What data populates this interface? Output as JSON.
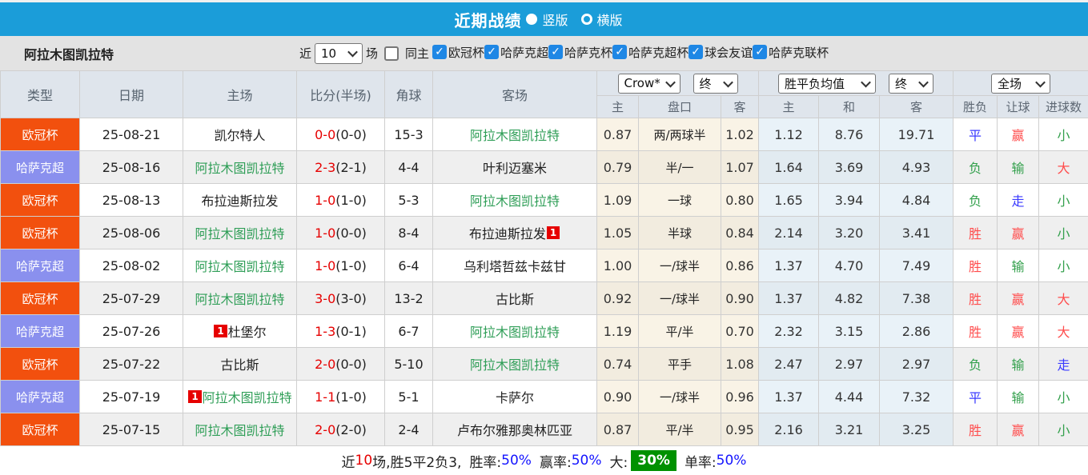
{
  "topbar": {
    "title": "近期战绩",
    "radio_vertical": "竖版",
    "radio_horizontal": "横版"
  },
  "filter": {
    "team_name": "阿拉木图凯拉特",
    "recent_label": "近",
    "recent_value": "10",
    "games_label": "场",
    "same_home_label": "同主",
    "leagues": [
      "欧冠杯",
      "哈萨克超",
      "哈萨克杯",
      "哈萨克超杯",
      "球会友谊",
      "哈萨克联杯"
    ]
  },
  "table": {
    "headers": [
      "类型",
      "日期",
      "主场",
      "比分(半场)",
      "角球",
      "客场"
    ],
    "sub_headers": [
      "主",
      "盘口",
      "客",
      "主",
      "和",
      "客",
      "胜负",
      "让球",
      "进球数"
    ],
    "selects": {
      "company": "Crow*",
      "company_state": "终",
      "mean": "胜平负均值",
      "mean_state": "终",
      "scope": "全场"
    },
    "rows": [
      {
        "type": "欧冠杯",
        "type_key": "ucl",
        "date": "25-08-21",
        "home": {
          "n": "凯尔特人",
          "green": false,
          "badge": null,
          "badge_pos": "before"
        },
        "score_ft": "0-0",
        "score_half": "(0-0)",
        "corners": "15-3",
        "away": {
          "n": "阿拉木图凯拉特",
          "green": true,
          "badge": null,
          "badge_pos": "before"
        },
        "odds": {
          "h": "0.87",
          "line": "两/两球半",
          "a": "1.02"
        },
        "mean": {
          "h": "1.12",
          "d": "8.76",
          "a": "19.71"
        },
        "results": {
          "wdl": {
            "t": "平",
            "c": "blue"
          },
          "handicap": {
            "t": "赢",
            "c": "red"
          },
          "goals": {
            "t": "小",
            "c": "green"
          }
        }
      },
      {
        "type": "哈萨克超",
        "type_key": "ksl",
        "date": "25-08-16",
        "home": {
          "n": "阿拉木图凯拉特",
          "green": true,
          "badge": null,
          "badge_pos": "before"
        },
        "score_ft": "2-3",
        "score_half": "(2-1)",
        "corners": "4-4",
        "away": {
          "n": "叶利迈塞米",
          "green": false,
          "badge": null,
          "badge_pos": "before"
        },
        "odds": {
          "h": "0.79",
          "line": "半/一",
          "a": "1.07"
        },
        "mean": {
          "h": "1.64",
          "d": "3.69",
          "a": "4.93"
        },
        "results": {
          "wdl": {
            "t": "负",
            "c": "green"
          },
          "handicap": {
            "t": "输",
            "c": "green"
          },
          "goals": {
            "t": "大",
            "c": "red"
          }
        }
      },
      {
        "type": "欧冠杯",
        "type_key": "ucl",
        "date": "25-08-13",
        "home": {
          "n": "布拉迪斯拉发",
          "green": false,
          "badge": null,
          "badge_pos": "before"
        },
        "score_ft": "1-0",
        "score_half": "(1-0)",
        "corners": "5-3",
        "away": {
          "n": "阿拉木图凯拉特",
          "green": true,
          "badge": null,
          "badge_pos": "before"
        },
        "odds": {
          "h": "1.09",
          "line": "一球",
          "a": "0.80"
        },
        "mean": {
          "h": "1.65",
          "d": "3.94",
          "a": "4.84"
        },
        "results": {
          "wdl": {
            "t": "负",
            "c": "green"
          },
          "handicap": {
            "t": "走",
            "c": "blue"
          },
          "goals": {
            "t": "小",
            "c": "green"
          }
        }
      },
      {
        "type": "欧冠杯",
        "type_key": "ucl",
        "date": "25-08-06",
        "home": {
          "n": "阿拉木图凯拉特",
          "green": true,
          "badge": null,
          "badge_pos": "before"
        },
        "score_ft": "1-0",
        "score_half": "(0-0)",
        "corners": "8-4",
        "away": {
          "n": "布拉迪斯拉发",
          "green": false,
          "badge": "1",
          "badge_pos": "after"
        },
        "odds": {
          "h": "1.05",
          "line": "半球",
          "a": "0.84"
        },
        "mean": {
          "h": "2.14",
          "d": "3.20",
          "a": "3.41"
        },
        "results": {
          "wdl": {
            "t": "胜",
            "c": "red"
          },
          "handicap": {
            "t": "赢",
            "c": "red"
          },
          "goals": {
            "t": "小",
            "c": "green"
          }
        }
      },
      {
        "type": "哈萨克超",
        "type_key": "ksl",
        "date": "25-08-02",
        "home": {
          "n": "阿拉木图凯拉特",
          "green": true,
          "badge": null,
          "badge_pos": "before"
        },
        "score_ft": "1-0",
        "score_half": "(1-0)",
        "corners": "6-4",
        "away": {
          "n": "乌利塔哲兹卡兹甘",
          "green": false,
          "badge": null,
          "badge_pos": "before"
        },
        "odds": {
          "h": "1.00",
          "line": "一/球半",
          "a": "0.86"
        },
        "mean": {
          "h": "1.37",
          "d": "4.70",
          "a": "7.49"
        },
        "results": {
          "wdl": {
            "t": "胜",
            "c": "red"
          },
          "handicap": {
            "t": "输",
            "c": "green"
          },
          "goals": {
            "t": "小",
            "c": "green"
          }
        }
      },
      {
        "type": "欧冠杯",
        "type_key": "ucl",
        "date": "25-07-29",
        "home": {
          "n": "阿拉木图凯拉特",
          "green": true,
          "badge": null,
          "badge_pos": "before"
        },
        "score_ft": "3-0",
        "score_half": "(3-0)",
        "corners": "13-2",
        "away": {
          "n": "古比斯",
          "green": false,
          "badge": null,
          "badge_pos": "before"
        },
        "odds": {
          "h": "0.92",
          "line": "一/球半",
          "a": "0.90"
        },
        "mean": {
          "h": "1.37",
          "d": "4.82",
          "a": "7.38"
        },
        "results": {
          "wdl": {
            "t": "胜",
            "c": "red"
          },
          "handicap": {
            "t": "赢",
            "c": "red"
          },
          "goals": {
            "t": "大",
            "c": "red"
          }
        }
      },
      {
        "type": "哈萨克超",
        "type_key": "ksl",
        "date": "25-07-26",
        "home": {
          "n": "杜堡尔",
          "green": false,
          "badge": "1",
          "badge_pos": "before"
        },
        "score_ft": "1-3",
        "score_half": "(0-1)",
        "corners": "6-7",
        "away": {
          "n": "阿拉木图凯拉特",
          "green": true,
          "badge": null,
          "badge_pos": "before"
        },
        "odds": {
          "h": "1.19",
          "line": "平/半",
          "a": "0.70"
        },
        "mean": {
          "h": "2.32",
          "d": "3.15",
          "a": "2.86"
        },
        "results": {
          "wdl": {
            "t": "胜",
            "c": "red"
          },
          "handicap": {
            "t": "赢",
            "c": "red"
          },
          "goals": {
            "t": "大",
            "c": "red"
          }
        }
      },
      {
        "type": "欧冠杯",
        "type_key": "ucl",
        "date": "25-07-22",
        "home": {
          "n": "古比斯",
          "green": false,
          "badge": null,
          "badge_pos": "before"
        },
        "score_ft": "2-0",
        "score_half": "(0-0)",
        "corners": "5-10",
        "away": {
          "n": "阿拉木图凯拉特",
          "green": true,
          "badge": null,
          "badge_pos": "before"
        },
        "odds": {
          "h": "0.74",
          "line": "平手",
          "a": "1.08"
        },
        "mean": {
          "h": "2.47",
          "d": "2.97",
          "a": "2.97"
        },
        "results": {
          "wdl": {
            "t": "负",
            "c": "green"
          },
          "handicap": {
            "t": "输",
            "c": "green"
          },
          "goals": {
            "t": "走",
            "c": "blue"
          }
        }
      },
      {
        "type": "哈萨克超",
        "type_key": "ksl",
        "date": "25-07-19",
        "home": {
          "n": "阿拉木图凯拉特",
          "green": true,
          "badge": "1",
          "badge_pos": "before"
        },
        "score_ft": "1-1",
        "score_half": "(1-0)",
        "corners": "5-1",
        "away": {
          "n": "卡萨尔",
          "green": false,
          "badge": null,
          "badge_pos": "before"
        },
        "odds": {
          "h": "0.90",
          "line": "一/球半",
          "a": "0.96"
        },
        "mean": {
          "h": "1.37",
          "d": "4.44",
          "a": "7.32"
        },
        "results": {
          "wdl": {
            "t": "平",
            "c": "blue"
          },
          "handicap": {
            "t": "输",
            "c": "green"
          },
          "goals": {
            "t": "小",
            "c": "green"
          }
        }
      },
      {
        "type": "欧冠杯",
        "type_key": "ucl",
        "date": "25-07-15",
        "home": {
          "n": "阿拉木图凯拉特",
          "green": true,
          "badge": null,
          "badge_pos": "before"
        },
        "score_ft": "2-0",
        "score_half": "(2-0)",
        "corners": "2-4",
        "away": {
          "n": "卢布尔雅那奥林匹亚",
          "green": false,
          "badge": null,
          "badge_pos": "before"
        },
        "odds": {
          "h": "0.87",
          "line": "平/半",
          "a": "0.95"
        },
        "mean": {
          "h": "2.16",
          "d": "3.21",
          "a": "3.25"
        },
        "results": {
          "wdl": {
            "t": "胜",
            "c": "red"
          },
          "handicap": {
            "t": "赢",
            "c": "red"
          },
          "goals": {
            "t": "小",
            "c": "green"
          }
        }
      }
    ]
  },
  "footer": {
    "prefix": "近",
    "count": "10",
    "record": "场,胜5平2负3,",
    "win_rate_label": "胜率:",
    "win_rate": "50%",
    "odds_win_label": "赢率:",
    "odds_win": "50%",
    "big_label": "大:",
    "big_value": "30%",
    "single_label": "单率:",
    "single_value": "50%"
  },
  "colors": {
    "topbar_blue": "#1b9dd9",
    "ucl_orange": "#f2500e",
    "ksl_purple": "#8a90ee",
    "team_green": "#2f9e57",
    "score_red": "#e60000",
    "result_red": "#ff4d4d",
    "result_green": "#33a04c",
    "result_blue": "#3a3aff",
    "big_box_green": "#009100"
  }
}
